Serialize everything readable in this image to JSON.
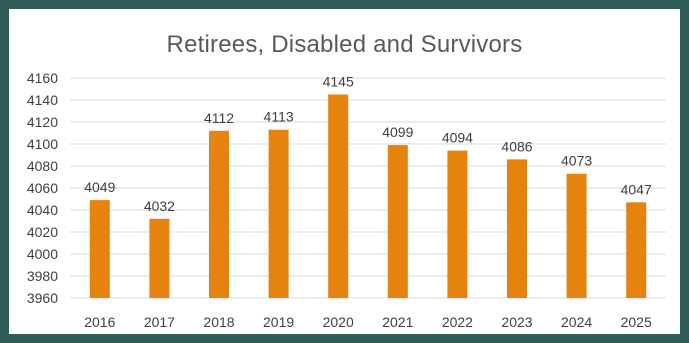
{
  "chart_data": {
    "type": "bar",
    "title": "Retirees, Disabled and Survivors",
    "xlabel": "",
    "ylabel": "",
    "categories": [
      "2016",
      "2017",
      "2018",
      "2019",
      "2020",
      "2021",
      "2022",
      "2023",
      "2024",
      "2025"
    ],
    "values": [
      4049,
      4032,
      4112,
      4113,
      4145,
      4099,
      4094,
      4086,
      4073,
      4047
    ],
    "ylim": [
      3960,
      4160
    ],
    "yticks": [
      3960,
      3980,
      4000,
      4020,
      4040,
      4060,
      4080,
      4100,
      4120,
      4140,
      4160
    ],
    "grid": true,
    "legend": "none",
    "colors": {
      "bar": "#e5830e",
      "grid": "#d9d9d9",
      "frame": "#2f5c57",
      "text": "#404040",
      "title": "#595959"
    }
  }
}
